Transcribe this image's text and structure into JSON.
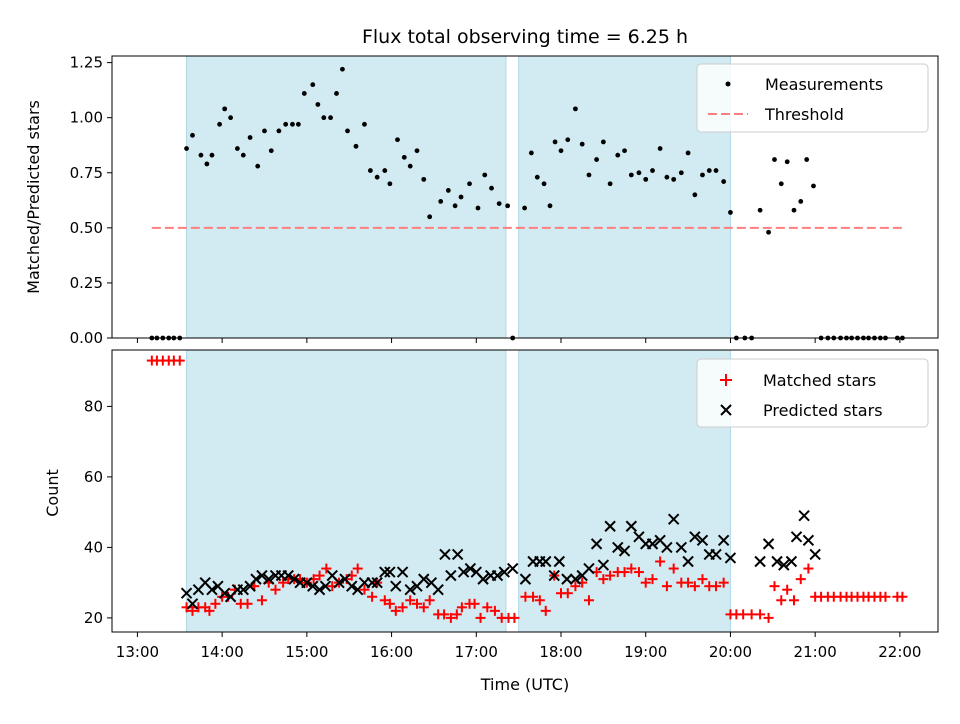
{
  "chart_data": {
    "title": "Flux total observing time = 6.25 h",
    "xlabel": "Time (UTC)",
    "x_ticks": [
      "13:00",
      "14:00",
      "15:00",
      "16:00",
      "17:00",
      "18:00",
      "19:00",
      "20:00",
      "21:00",
      "22:00"
    ],
    "xlim_hours": [
      12.7,
      22.45
    ],
    "shaded_intervals_hours": [
      [
        13.58,
        17.35
      ],
      [
        17.5,
        20.0
      ]
    ],
    "shade_color": "#add8e6",
    "panels": [
      {
        "type": "scatter",
        "ylabel": "Matched/Predicted stars",
        "ylim": [
          0,
          1.28
        ],
        "y_ticks": [
          "0.00",
          "0.25",
          "0.50",
          "0.75",
          "1.00",
          "1.25"
        ],
        "legend": [
          "Measurements",
          "Threshold"
        ],
        "legend_position": "top-right",
        "series": [
          {
            "name": "Measurements",
            "color": "#000000",
            "marker": "dot",
            "x": [
              13.17,
              13.23,
              13.3,
              13.37,
              13.43,
              13.5,
              13.58,
              13.65,
              13.75,
              13.82,
              13.88,
              13.97,
              14.03,
              14.1,
              14.18,
              14.25,
              14.33,
              14.42,
              14.5,
              14.58,
              14.67,
              14.75,
              14.83,
              14.9,
              14.97,
              15.07,
              15.13,
              15.2,
              15.28,
              15.35,
              15.42,
              15.48,
              15.58,
              15.68,
              15.75,
              15.83,
              15.92,
              15.98,
              16.07,
              16.15,
              16.22,
              16.3,
              16.38,
              16.45,
              16.58,
              16.67,
              16.75,
              16.82,
              16.92,
              17.02,
              17.1,
              17.18,
              17.27,
              17.37,
              17.43,
              17.57,
              17.65,
              17.72,
              17.8,
              17.87,
              17.93,
              18.0,
              18.08,
              18.17,
              18.25,
              18.33,
              18.42,
              18.5,
              18.58,
              18.67,
              18.75,
              18.83,
              18.92,
              19.0,
              19.08,
              19.17,
              19.25,
              19.33,
              19.42,
              19.5,
              19.58,
              19.67,
              19.75,
              19.83,
              19.92,
              20.0,
              20.07,
              20.17,
              20.25,
              20.35,
              20.45,
              20.52,
              20.6,
              20.67,
              20.75,
              20.83,
              20.9,
              20.98,
              21.07,
              21.15,
              21.22,
              21.3,
              21.37,
              21.43,
              21.5,
              21.57,
              21.63,
              21.7,
              21.77,
              21.83,
              21.97,
              22.03
            ],
            "y": [
              0,
              0,
              0,
              0,
              0,
              0,
              0.86,
              0.92,
              0.83,
              0.79,
              0.83,
              0.97,
              1.04,
              1.0,
              0.86,
              0.83,
              0.91,
              0.78,
              0.94,
              0.85,
              0.94,
              0.97,
              0.97,
              0.97,
              1.11,
              1.15,
              1.06,
              1.0,
              1.0,
              1.11,
              1.22,
              0.94,
              0.87,
              0.97,
              0.76,
              0.73,
              0.76,
              0.7,
              0.9,
              0.82,
              0.78,
              0.85,
              0.72,
              0.55,
              0.62,
              0.67,
              0.6,
              0.64,
              0.7,
              0.59,
              0.74,
              0.68,
              0.61,
              0.6,
              0,
              0.59,
              0.84,
              0.73,
              0.7,
              0.6,
              0.89,
              0.85,
              0.9,
              1.04,
              0.88,
              0.74,
              0.81,
              0.89,
              0.7,
              0.83,
              0.85,
              0.74,
              0.75,
              0.72,
              0.76,
              0.86,
              0.73,
              0.72,
              0.75,
              0.84,
              0.65,
              0.74,
              0.76,
              0.76,
              0.71,
              0.57,
              0,
              0,
              0,
              0.58,
              0.48,
              0.81,
              0.7,
              0.8,
              0.58,
              0.62,
              0.81,
              0.69,
              0,
              0,
              0,
              0,
              0,
              0,
              0,
              0,
              0,
              0,
              0,
              0,
              0,
              0
            ]
          },
          {
            "name": "Threshold",
            "color": "#ff7f7f",
            "dash": true,
            "x": [
              13.17,
              22.03
            ],
            "y": [
              0.5,
              0.5
            ]
          }
        ]
      },
      {
        "type": "scatter",
        "ylabel": "Count",
        "ylim": [
          16,
          96
        ],
        "y_ticks": [
          "20",
          "40",
          "60",
          "80"
        ],
        "legend": [
          "Matched stars",
          "Predicted stars"
        ],
        "legend_position": "top-right",
        "series": [
          {
            "name": "Matched stars",
            "color": "#ff0000",
            "marker": "plus",
            "x": [
              13.17,
              13.23,
              13.3,
              13.37,
              13.43,
              13.5,
              13.58,
              13.65,
              13.72,
              13.8,
              13.85,
              13.92,
              14.0,
              14.07,
              14.15,
              14.22,
              14.3,
              14.38,
              14.47,
              14.55,
              14.63,
              14.72,
              14.78,
              14.85,
              14.92,
              15.0,
              15.08,
              15.15,
              15.23,
              15.3,
              15.38,
              15.47,
              15.53,
              15.6,
              15.68,
              15.77,
              15.83,
              15.92,
              15.98,
              16.05,
              16.13,
              16.22,
              16.3,
              16.38,
              16.45,
              16.55,
              16.62,
              16.7,
              16.77,
              16.83,
              16.92,
              16.98,
              17.05,
              17.13,
              17.22,
              17.3,
              17.38,
              17.45,
              17.58,
              17.67,
              17.75,
              17.82,
              17.92,
              18.0,
              18.08,
              18.17,
              18.25,
              18.33,
              18.42,
              18.5,
              18.58,
              18.67,
              18.75,
              18.83,
              18.92,
              19.0,
              19.08,
              19.17,
              19.25,
              19.33,
              19.42,
              19.5,
              19.58,
              19.67,
              19.75,
              19.83,
              19.92,
              20.0,
              20.07,
              20.15,
              20.25,
              20.35,
              20.45,
              20.52,
              20.6,
              20.67,
              20.75,
              20.83,
              20.92,
              21.0,
              21.07,
              21.15,
              21.22,
              21.3,
              21.37,
              21.43,
              21.5,
              21.57,
              21.63,
              21.7,
              21.77,
              21.83,
              21.97,
              22.03
            ],
            "y": [
              93,
              93,
              93,
              93,
              93,
              93,
              23,
              22,
              23,
              23,
              22,
              24,
              26,
              26,
              28,
              24,
              24,
              29,
              25,
              30,
              28,
              30,
              31,
              31,
              31,
              30,
              31,
              32,
              34,
              29,
              30,
              31,
              32,
              34,
              28,
              26,
              30,
              25,
              24,
              22,
              23,
              25,
              24,
              23,
              25,
              21,
              21,
              20,
              21,
              23,
              24,
              24,
              20,
              23,
              22,
              20,
              20,
              20,
              26,
              26,
              25,
              22,
              32,
              27,
              27,
              29,
              30,
              25,
              33,
              31,
              32,
              33,
              33,
              34,
              33,
              30,
              31,
              36,
              29,
              34,
              30,
              30,
              29,
              31,
              29,
              29,
              30,
              21,
              21,
              21,
              21,
              21,
              20,
              29,
              25,
              28,
              25,
              31,
              34,
              26,
              26,
              26,
              26,
              26,
              26,
              26,
              26,
              26,
              26,
              26,
              26,
              26,
              26,
              26
            ]
          },
          {
            "name": "Predicted stars",
            "color": "#000000",
            "marker": "x",
            "x": [
              13.58,
              13.65,
              13.72,
              13.8,
              13.88,
              13.95,
              14.03,
              14.1,
              14.18,
              14.25,
              14.33,
              14.4,
              14.47,
              14.55,
              14.63,
              14.7,
              14.78,
              14.85,
              14.92,
              15.0,
              15.07,
              15.15,
              15.22,
              15.3,
              15.38,
              15.45,
              15.53,
              15.6,
              15.68,
              15.77,
              15.83,
              15.92,
              15.98,
              16.05,
              16.13,
              16.22,
              16.3,
              16.38,
              16.47,
              16.55,
              16.63,
              16.7,
              16.78,
              16.85,
              16.93,
              17.0,
              17.08,
              17.17,
              17.25,
              17.33,
              17.43,
              17.58,
              17.67,
              17.75,
              17.82,
              17.92,
              17.98,
              18.07,
              18.17,
              18.25,
              18.33,
              18.42,
              18.5,
              18.58,
              18.67,
              18.75,
              18.83,
              18.92,
              19.0,
              19.08,
              19.17,
              19.25,
              19.33,
              19.42,
              19.5,
              19.58,
              19.67,
              19.75,
              19.83,
              19.92,
              20.0,
              20.35,
              20.45,
              20.55,
              20.63,
              20.72,
              20.78,
              20.87,
              20.92,
              21.0
            ],
            "y": [
              27,
              24,
              28,
              30,
              28,
              29,
              27,
              26,
              28,
              28,
              29,
              31,
              32,
              31,
              32,
              32,
              32,
              31,
              30,
              30,
              29,
              28,
              29,
              32,
              30,
              31,
              29,
              28,
              30,
              30,
              30,
              33,
              33,
              29,
              33,
              28,
              29,
              31,
              30,
              28,
              38,
              32,
              38,
              33,
              34,
              33,
              31,
              32,
              32,
              33,
              34,
              31,
              36,
              36,
              36,
              32,
              36,
              31,
              31,
              32,
              34,
              41,
              35,
              46,
              40,
              39,
              46,
              43,
              41,
              41,
              42,
              40,
              48,
              40,
              36,
              43,
              42,
              38,
              38,
              42,
              37,
              36,
              41,
              36,
              35,
              36,
              43,
              49,
              42,
              38
            ]
          }
        ]
      }
    ]
  }
}
